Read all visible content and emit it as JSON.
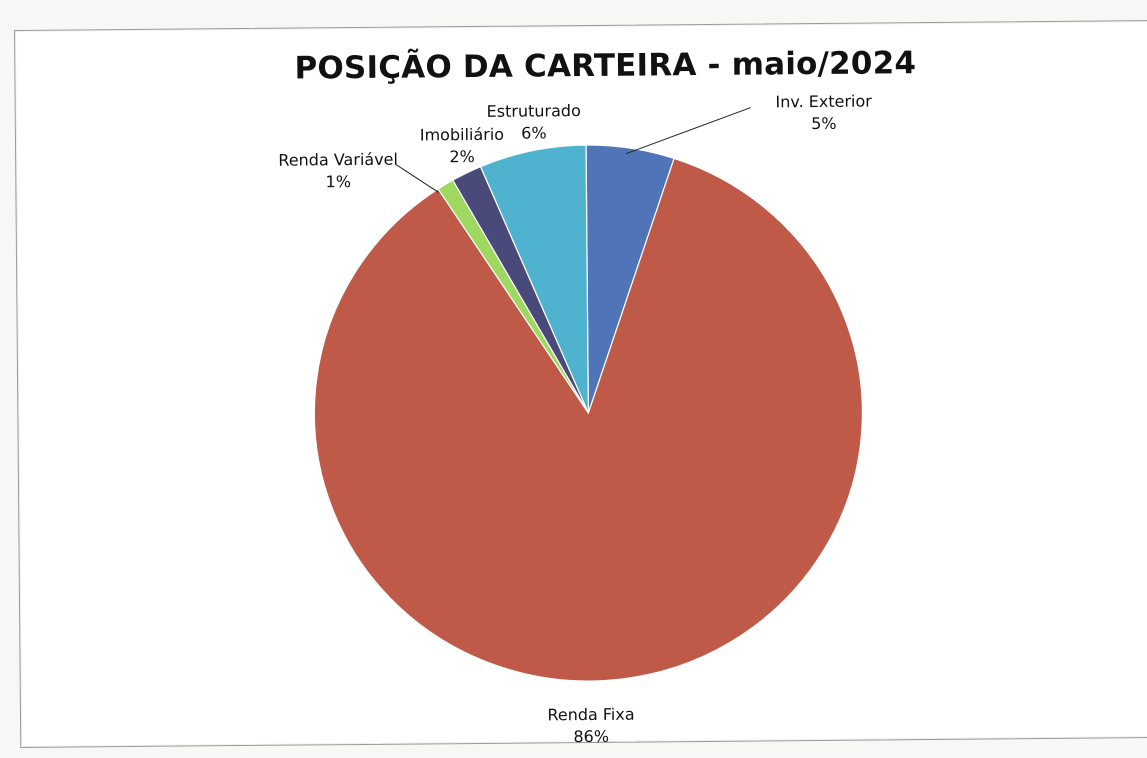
{
  "chart_data": {
    "type": "pie",
    "title": "POSIÇÃO DA CARTEIRA - maio/2024",
    "slices": [
      {
        "label": "Inv. Exterior",
        "pct_label": "5%",
        "value": 5.2,
        "color": "#4f74b8"
      },
      {
        "label": "Renda Fixa",
        "pct_label": "86%",
        "value": 85.7,
        "color": "#bf5a49"
      },
      {
        "label": "Renda Variável",
        "pct_label": "1%",
        "value": 1.0,
        "color": "#9fd860"
      },
      {
        "label": "Imobiliário",
        "pct_label": "2%",
        "value": 1.8,
        "color": "#4a4a7a"
      },
      {
        "label": "Estruturado",
        "pct_label": "6%",
        "value": 6.3,
        "color": "#4fb3cf"
      }
    ],
    "start": "top",
    "direction": "clockwise"
  }
}
